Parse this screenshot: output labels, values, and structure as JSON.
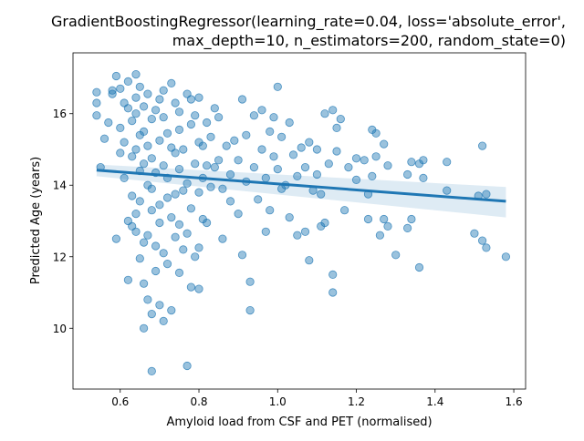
{
  "chart_data": {
    "type": "scatter",
    "title_lines": [
      "GradientBoostingRegressor(learning_rate=0.04, loss='absolute_error',",
      "max_depth=10, n_estimators=200, random_state=0)"
    ],
    "xlabel": "Amyloid load from CSF and PET (normalised)",
    "ylabel": "Predicted Age (years)",
    "xlim": [
      0.48,
      1.63
    ],
    "ylim": [
      8.3,
      17.7
    ],
    "xticks": [
      0.6,
      0.8,
      1.0,
      1.2,
      1.4,
      1.6
    ],
    "yticks": [
      10,
      12,
      14,
      16
    ],
    "xtick_labels": [
      "0.6",
      "0.8",
      "1.0",
      "1.2",
      "1.4",
      "1.6"
    ],
    "ytick_labels": [
      "10",
      "12",
      "14",
      "16"
    ],
    "grid": false,
    "point_color": "#1f77b4",
    "line_color": "#1f77b4",
    "regression": {
      "x": [
        0.54,
        1.58
      ],
      "y": [
        14.42,
        13.55
      ],
      "ci_lower": [
        14.25,
        13.1
      ],
      "ci_upper": [
        14.58,
        13.95
      ]
    },
    "points": [
      [
        0.54,
        16.6
      ],
      [
        0.54,
        16.3
      ],
      [
        0.54,
        15.95
      ],
      [
        0.55,
        14.5
      ],
      [
        0.56,
        15.3
      ],
      [
        0.57,
        15.75
      ],
      [
        0.58,
        16.55
      ],
      [
        0.58,
        16.65
      ],
      [
        0.59,
        17.05
      ],
      [
        0.59,
        12.5
      ],
      [
        0.6,
        16.7
      ],
      [
        0.6,
        15.6
      ],
      [
        0.6,
        14.9
      ],
      [
        0.61,
        16.3
      ],
      [
        0.61,
        15.2
      ],
      [
        0.61,
        14.2
      ],
      [
        0.62,
        16.9
      ],
      [
        0.62,
        16.15
      ],
      [
        0.62,
        13.0
      ],
      [
        0.62,
        11.35
      ],
      [
        0.63,
        15.8
      ],
      [
        0.63,
        14.8
      ],
      [
        0.63,
        13.7
      ],
      [
        0.63,
        12.85
      ],
      [
        0.64,
        17.1
      ],
      [
        0.64,
        16.45
      ],
      [
        0.64,
        16.0
      ],
      [
        0.64,
        15.0
      ],
      [
        0.64,
        13.2
      ],
      [
        0.64,
        12.7
      ],
      [
        0.65,
        16.75
      ],
      [
        0.65,
        15.4
      ],
      [
        0.65,
        14.4
      ],
      [
        0.65,
        13.55
      ],
      [
        0.65,
        11.95
      ],
      [
        0.66,
        16.2
      ],
      [
        0.66,
        15.5
      ],
      [
        0.66,
        14.6
      ],
      [
        0.66,
        12.4
      ],
      [
        0.66,
        11.25
      ],
      [
        0.66,
        10.0
      ],
      [
        0.67,
        16.55
      ],
      [
        0.67,
        15.1
      ],
      [
        0.67,
        14.0
      ],
      [
        0.67,
        12.6
      ],
      [
        0.67,
        10.8
      ],
      [
        0.68,
        15.85
      ],
      [
        0.68,
        14.75
      ],
      [
        0.68,
        13.9
      ],
      [
        0.68,
        13.3
      ],
      [
        0.68,
        10.4
      ],
      [
        0.68,
        8.8
      ],
      [
        0.69,
        16.1
      ],
      [
        0.69,
        14.35
      ],
      [
        0.69,
        12.3
      ],
      [
        0.69,
        11.6
      ],
      [
        0.7,
        16.4
      ],
      [
        0.7,
        15.25
      ],
      [
        0.7,
        13.45
      ],
      [
        0.7,
        12.95
      ],
      [
        0.7,
        10.65
      ],
      [
        0.71,
        16.65
      ],
      [
        0.71,
        15.9
      ],
      [
        0.71,
        14.55
      ],
      [
        0.71,
        12.1
      ],
      [
        0.71,
        10.2
      ],
      [
        0.72,
        15.45
      ],
      [
        0.72,
        14.2
      ],
      [
        0.72,
        13.65
      ],
      [
        0.72,
        11.8
      ],
      [
        0.73,
        16.85
      ],
      [
        0.73,
        15.05
      ],
      [
        0.73,
        13.1
      ],
      [
        0.73,
        10.5
      ],
      [
        0.74,
        16.3
      ],
      [
        0.74,
        14.9
      ],
      [
        0.74,
        13.75
      ],
      [
        0.74,
        12.55
      ],
      [
        0.75,
        16.05
      ],
      [
        0.75,
        15.55
      ],
      [
        0.75,
        14.45
      ],
      [
        0.75,
        12.9
      ],
      [
        0.75,
        11.55
      ],
      [
        0.76,
        15.0
      ],
      [
        0.76,
        13.85
      ],
      [
        0.76,
        12.2
      ],
      [
        0.77,
        16.55
      ],
      [
        0.77,
        14.05
      ],
      [
        0.77,
        12.65
      ],
      [
        0.77,
        8.95
      ],
      [
        0.78,
        16.4
      ],
      [
        0.78,
        15.7
      ],
      [
        0.78,
        13.35
      ],
      [
        0.78,
        11.15
      ],
      [
        0.79,
        15.95
      ],
      [
        0.79,
        14.6
      ],
      [
        0.79,
        12.0
      ],
      [
        0.8,
        16.45
      ],
      [
        0.8,
        15.2
      ],
      [
        0.8,
        13.8
      ],
      [
        0.8,
        12.25
      ],
      [
        0.8,
        11.1
      ],
      [
        0.81,
        15.1
      ],
      [
        0.81,
        14.2
      ],
      [
        0.81,
        13.05
      ],
      [
        0.82,
        15.75
      ],
      [
        0.82,
        14.55
      ],
      [
        0.82,
        12.95
      ],
      [
        0.83,
        15.35
      ],
      [
        0.83,
        13.95
      ],
      [
        0.84,
        16.15
      ],
      [
        0.84,
        14.5
      ],
      [
        0.85,
        15.9
      ],
      [
        0.85,
        14.7
      ],
      [
        0.86,
        13.9
      ],
      [
        0.86,
        12.5
      ],
      [
        0.87,
        15.1
      ],
      [
        0.88,
        14.3
      ],
      [
        0.88,
        13.55
      ],
      [
        0.89,
        15.25
      ],
      [
        0.9,
        14.7
      ],
      [
        0.9,
        13.2
      ],
      [
        0.91,
        16.4
      ],
      [
        0.91,
        12.05
      ],
      [
        0.92,
        15.4
      ],
      [
        0.92,
        14.1
      ],
      [
        0.93,
        10.5
      ],
      [
        0.93,
        11.3
      ],
      [
        0.94,
        15.95
      ],
      [
        0.94,
        14.5
      ],
      [
        0.95,
        13.6
      ],
      [
        0.96,
        16.1
      ],
      [
        0.96,
        15.0
      ],
      [
        0.97,
        14.2
      ],
      [
        0.97,
        12.7
      ],
      [
        0.98,
        15.5
      ],
      [
        0.98,
        13.3
      ],
      [
        0.99,
        15.9
      ],
      [
        0.99,
        14.8
      ],
      [
        1.0,
        16.75
      ],
      [
        1.0,
        14.45
      ],
      [
        1.01,
        15.35
      ],
      [
        1.01,
        13.9
      ],
      [
        1.02,
        14.0
      ],
      [
        1.03,
        15.75
      ],
      [
        1.03,
        13.1
      ],
      [
        1.04,
        14.85
      ],
      [
        1.05,
        14.25
      ],
      [
        1.05,
        12.6
      ],
      [
        1.06,
        15.05
      ],
      [
        1.07,
        14.5
      ],
      [
        1.07,
        12.7
      ],
      [
        1.08,
        15.2
      ],
      [
        1.08,
        11.9
      ],
      [
        1.09,
        13.85
      ],
      [
        1.1,
        15.0
      ],
      [
        1.1,
        14.3
      ],
      [
        1.11,
        12.85
      ],
      [
        1.11,
        13.75
      ],
      [
        1.12,
        16.0
      ],
      [
        1.12,
        12.95
      ],
      [
        1.13,
        14.6
      ],
      [
        1.14,
        16.1
      ],
      [
        1.14,
        11.5
      ],
      [
        1.14,
        11.0
      ],
      [
        1.15,
        15.6
      ],
      [
        1.15,
        14.95
      ],
      [
        1.16,
        15.85
      ],
      [
        1.17,
        13.3
      ],
      [
        1.18,
        14.5
      ],
      [
        1.2,
        14.75
      ],
      [
        1.2,
        14.15
      ],
      [
        1.22,
        14.7
      ],
      [
        1.23,
        13.75
      ],
      [
        1.23,
        13.05
      ],
      [
        1.24,
        15.55
      ],
      [
        1.24,
        14.25
      ],
      [
        1.25,
        15.45
      ],
      [
        1.25,
        14.8
      ],
      [
        1.26,
        12.6
      ],
      [
        1.27,
        15.15
      ],
      [
        1.27,
        13.05
      ],
      [
        1.28,
        14.55
      ],
      [
        1.28,
        12.85
      ],
      [
        1.3,
        12.05
      ],
      [
        1.33,
        14.3
      ],
      [
        1.33,
        12.8
      ],
      [
        1.34,
        14.65
      ],
      [
        1.34,
        13.05
      ],
      [
        1.36,
        14.6
      ],
      [
        1.36,
        11.7
      ],
      [
        1.37,
        14.7
      ],
      [
        1.37,
        14.2
      ],
      [
        1.43,
        14.65
      ],
      [
        1.43,
        13.85
      ],
      [
        1.5,
        12.65
      ],
      [
        1.51,
        13.7
      ],
      [
        1.52,
        15.1
      ],
      [
        1.52,
        12.45
      ],
      [
        1.53,
        12.25
      ],
      [
        1.53,
        13.75
      ],
      [
        1.58,
        12.0
      ]
    ]
  }
}
